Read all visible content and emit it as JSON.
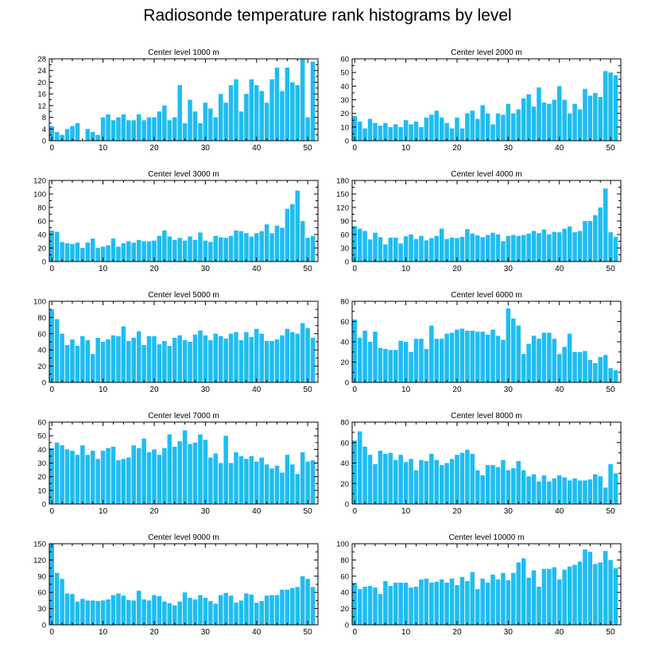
{
  "title": "Radiosonde temperature rank histograms by level",
  "bar_color": "#1ebdf2",
  "chart_data": [
    {
      "type": "bar",
      "title": "Center level 1000 m",
      "xlabel": "",
      "ylabel": "",
      "xlim": [
        -0.5,
        52
      ],
      "xticks": [
        0,
        10,
        20,
        30,
        40,
        50
      ],
      "ylim": [
        0,
        28
      ],
      "yticks": [
        0,
        4,
        8,
        12,
        16,
        20,
        24,
        28
      ],
      "x": [
        0,
        1,
        2,
        3,
        4,
        5,
        6,
        7,
        8,
        9,
        10,
        11,
        12,
        13,
        14,
        15,
        16,
        17,
        18,
        19,
        20,
        21,
        22,
        23,
        24,
        25,
        26,
        27,
        28,
        29,
        30,
        31,
        32,
        33,
        34,
        35,
        36,
        37,
        38,
        39,
        40,
        41,
        42,
        43,
        44,
        45,
        46,
        47,
        48,
        49,
        50,
        51
      ],
      "values": [
        5,
        3,
        2,
        4,
        5,
        6,
        0,
        4,
        3,
        2,
        8,
        9,
        7,
        8,
        9,
        7,
        7,
        9,
        7,
        8,
        8,
        10,
        12,
        7,
        8,
        19,
        6,
        14,
        10,
        6,
        13,
        11,
        8,
        16,
        13,
        19,
        21,
        10,
        16,
        21,
        19,
        17,
        13,
        21,
        25,
        17,
        25,
        20,
        19,
        28,
        8,
        27
      ]
    },
    {
      "type": "bar",
      "title": "Center level 2000 m",
      "xlabel": "",
      "ylabel": "",
      "xlim": [
        -0.5,
        52
      ],
      "xticks": [
        0,
        10,
        20,
        30,
        40,
        50
      ],
      "ylim": [
        0,
        60
      ],
      "yticks": [
        0,
        10,
        20,
        30,
        40,
        50,
        60
      ],
      "x": [
        0,
        1,
        2,
        3,
        4,
        5,
        6,
        7,
        8,
        9,
        10,
        11,
        12,
        13,
        14,
        15,
        16,
        17,
        18,
        19,
        20,
        21,
        22,
        23,
        24,
        25,
        26,
        27,
        28,
        29,
        30,
        31,
        32,
        33,
        34,
        35,
        36,
        37,
        38,
        39,
        40,
        41,
        42,
        43,
        44,
        45,
        46,
        47,
        48,
        49,
        50,
        51
      ],
      "values": [
        18,
        14,
        9,
        16,
        13,
        11,
        13,
        10,
        12,
        10,
        15,
        12,
        14,
        10,
        17,
        19,
        22,
        17,
        13,
        9,
        17,
        9,
        20,
        22,
        16,
        26,
        20,
        12,
        20,
        19,
        27,
        20,
        23,
        31,
        34,
        25,
        39,
        28,
        27,
        30,
        40,
        30,
        20,
        27,
        23,
        38,
        33,
        35,
        32,
        51,
        50,
        48
      ]
    },
    {
      "type": "bar",
      "title": "Center level 3000 m",
      "xlabel": "",
      "ylabel": "",
      "xlim": [
        -0.5,
        52
      ],
      "xticks": [
        0,
        10,
        20,
        30,
        40,
        50
      ],
      "ylim": [
        0,
        120
      ],
      "yticks": [
        0,
        20,
        40,
        60,
        80,
        100,
        120
      ],
      "x": [
        0,
        1,
        2,
        3,
        4,
        5,
        6,
        7,
        8,
        9,
        10,
        11,
        12,
        13,
        14,
        15,
        16,
        17,
        18,
        19,
        20,
        21,
        22,
        23,
        24,
        25,
        26,
        27,
        28,
        29,
        30,
        31,
        32,
        33,
        34,
        35,
        36,
        37,
        38,
        39,
        40,
        41,
        42,
        43,
        44,
        45,
        46,
        47,
        48,
        49,
        50,
        51
      ],
      "values": [
        46,
        44,
        29,
        27,
        26,
        28,
        20,
        28,
        34,
        20,
        22,
        24,
        34,
        22,
        27,
        30,
        28,
        32,
        30,
        30,
        31,
        38,
        46,
        37,
        32,
        35,
        31,
        37,
        32,
        43,
        31,
        29,
        38,
        36,
        35,
        38,
        46,
        45,
        42,
        37,
        42,
        45,
        55,
        42,
        53,
        50,
        78,
        85,
        105,
        60,
        35,
        38
      ]
    },
    {
      "type": "bar",
      "title": "Center level 4000 m",
      "xlabel": "",
      "ylabel": "",
      "xlim": [
        -0.5,
        52
      ],
      "xticks": [
        0,
        10,
        20,
        30,
        40,
        50
      ],
      "ylim": [
        0,
        180
      ],
      "yticks": [
        0,
        30,
        60,
        90,
        120,
        150,
        180
      ],
      "x": [
        0,
        1,
        2,
        3,
        4,
        5,
        6,
        7,
        8,
        9,
        10,
        11,
        12,
        13,
        14,
        15,
        16,
        17,
        18,
        19,
        20,
        21,
        22,
        23,
        24,
        25,
        26,
        27,
        28,
        29,
        30,
        31,
        32,
        33,
        34,
        35,
        36,
        37,
        38,
        39,
        40,
        41,
        42,
        43,
        44,
        45,
        46,
        47,
        48,
        49,
        50,
        51
      ],
      "values": [
        79,
        73,
        68,
        49,
        64,
        54,
        38,
        53,
        53,
        40,
        56,
        60,
        50,
        57,
        47,
        52,
        57,
        73,
        50,
        53,
        52,
        55,
        72,
        62,
        58,
        54,
        59,
        64,
        60,
        45,
        57,
        59,
        57,
        59,
        62,
        68,
        63,
        71,
        60,
        66,
        65,
        73,
        78,
        65,
        68,
        90,
        90,
        103,
        120,
        162,
        65,
        55
      ]
    },
    {
      "type": "bar",
      "title": "Center level 5000 m",
      "xlabel": "",
      "ylabel": "",
      "xlim": [
        -0.5,
        52
      ],
      "xticks": [
        0,
        10,
        20,
        30,
        40,
        50
      ],
      "ylim": [
        0,
        100
      ],
      "yticks": [
        0,
        20,
        40,
        60,
        80,
        100
      ],
      "x": [
        0,
        1,
        2,
        3,
        4,
        5,
        6,
        7,
        8,
        9,
        10,
        11,
        12,
        13,
        14,
        15,
        16,
        17,
        18,
        19,
        20,
        21,
        22,
        23,
        24,
        25,
        26,
        27,
        28,
        29,
        30,
        31,
        32,
        33,
        34,
        35,
        36,
        37,
        38,
        39,
        40,
        41,
        42,
        43,
        44,
        45,
        46,
        47,
        48,
        49,
        50,
        51
      ],
      "values": [
        90,
        78,
        60,
        46,
        53,
        45,
        57,
        52,
        35,
        55,
        50,
        53,
        58,
        57,
        69,
        51,
        55,
        63,
        46,
        57,
        57,
        47,
        51,
        45,
        55,
        58,
        52,
        50,
        59,
        64,
        58,
        52,
        60,
        57,
        54,
        60,
        62,
        52,
        62,
        56,
        66,
        60,
        51,
        51,
        53,
        58,
        66,
        62,
        60,
        73,
        67,
        55
      ]
    },
    {
      "type": "bar",
      "title": "Center level 6000 m",
      "xlabel": "",
      "ylabel": "",
      "xlim": [
        -0.5,
        52
      ],
      "xticks": [
        0,
        10,
        20,
        30,
        40,
        50
      ],
      "ylim": [
        0,
        80
      ],
      "yticks": [
        0,
        20,
        40,
        60,
        80
      ],
      "x": [
        0,
        1,
        2,
        3,
        4,
        5,
        6,
        7,
        8,
        9,
        10,
        11,
        12,
        13,
        14,
        15,
        16,
        17,
        18,
        19,
        20,
        21,
        22,
        23,
        24,
        25,
        26,
        27,
        28,
        29,
        30,
        31,
        32,
        33,
        34,
        35,
        36,
        37,
        38,
        39,
        40,
        41,
        42,
        43,
        44,
        45,
        46,
        47,
        48,
        49,
        50,
        51
      ],
      "values": [
        62,
        44,
        51,
        40,
        50,
        34,
        33,
        32,
        32,
        41,
        40,
        30,
        43,
        43,
        33,
        56,
        43,
        43,
        48,
        49,
        52,
        53,
        51,
        51,
        50,
        50,
        47,
        52,
        46,
        42,
        73,
        63,
        56,
        28,
        38,
        46,
        43,
        49,
        49,
        43,
        28,
        35,
        48,
        30,
        30,
        31,
        22,
        19,
        25,
        27,
        14,
        12
      ]
    },
    {
      "type": "bar",
      "title": "Center level 7000 m",
      "xlabel": "",
      "ylabel": "",
      "xlim": [
        -0.5,
        52
      ],
      "xticks": [
        0,
        10,
        20,
        30,
        40,
        50
      ],
      "ylim": [
        0,
        60
      ],
      "yticks": [
        0,
        10,
        20,
        30,
        40,
        50,
        60
      ],
      "x": [
        0,
        1,
        2,
        3,
        4,
        5,
        6,
        7,
        8,
        9,
        10,
        11,
        12,
        13,
        14,
        15,
        16,
        17,
        18,
        19,
        20,
        21,
        22,
        23,
        24,
        25,
        26,
        27,
        28,
        29,
        30,
        31,
        32,
        33,
        34,
        35,
        36,
        37,
        38,
        39,
        40,
        41,
        42,
        43,
        44,
        45,
        46,
        47,
        48,
        49,
        50,
        51
      ],
      "values": [
        41,
        45,
        43,
        40,
        39,
        36,
        43,
        36,
        39,
        33,
        39,
        41,
        42,
        32,
        33,
        34,
        43,
        41,
        48,
        38,
        40,
        36,
        41,
        51,
        42,
        46,
        54,
        44,
        45,
        51,
        47,
        34,
        37,
        30,
        50,
        30,
        38,
        35,
        33,
        35,
        31,
        34,
        29,
        26,
        28,
        23,
        36,
        29,
        22,
        38,
        31,
        32
      ]
    },
    {
      "type": "bar",
      "title": "Center level 8000 m",
      "xlabel": "",
      "ylabel": "",
      "xlim": [
        -0.5,
        52
      ],
      "xticks": [
        0,
        10,
        20,
        30,
        40,
        50
      ],
      "ylim": [
        0,
        80
      ],
      "yticks": [
        0,
        20,
        40,
        60,
        80
      ],
      "x": [
        0,
        1,
        2,
        3,
        4,
        5,
        6,
        7,
        8,
        9,
        10,
        11,
        12,
        13,
        14,
        15,
        16,
        17,
        18,
        19,
        20,
        21,
        22,
        23,
        24,
        25,
        26,
        27,
        28,
        29,
        30,
        31,
        32,
        33,
        34,
        35,
        36,
        37,
        38,
        39,
        40,
        41,
        42,
        43,
        44,
        45,
        46,
        47,
        48,
        49,
        50,
        51
      ],
      "values": [
        62,
        71,
        56,
        48,
        39,
        52,
        49,
        50,
        43,
        48,
        41,
        44,
        33,
        43,
        42,
        49,
        43,
        38,
        40,
        44,
        48,
        50,
        53,
        49,
        33,
        28,
        38,
        38,
        36,
        43,
        33,
        35,
        42,
        33,
        27,
        29,
        22,
        28,
        22,
        25,
        28,
        26,
        23,
        25,
        23,
        23,
        24,
        29,
        27,
        16,
        39,
        30
      ]
    },
    {
      "type": "bar",
      "title": "Center level 9000 m",
      "xlabel": "",
      "ylabel": "",
      "xlim": [
        -0.5,
        52
      ],
      "xticks": [
        0,
        10,
        20,
        30,
        40,
        50
      ],
      "ylim": [
        0,
        150
      ],
      "yticks": [
        0,
        30,
        60,
        90,
        120,
        150
      ],
      "x": [
        0,
        1,
        2,
        3,
        4,
        5,
        6,
        7,
        8,
        9,
        10,
        11,
        12,
        13,
        14,
        15,
        16,
        17,
        18,
        19,
        20,
        21,
        22,
        23,
        24,
        25,
        26,
        27,
        28,
        29,
        30,
        31,
        32,
        33,
        34,
        35,
        36,
        37,
        38,
        39,
        40,
        41,
        42,
        43,
        44,
        45,
        46,
        47,
        48,
        49,
        50,
        51
      ],
      "values": [
        150,
        96,
        85,
        58,
        57,
        43,
        48,
        45,
        45,
        44,
        45,
        47,
        55,
        58,
        54,
        46,
        45,
        63,
        47,
        45,
        55,
        53,
        43,
        40,
        36,
        43,
        60,
        50,
        47,
        55,
        50,
        44,
        39,
        55,
        59,
        54,
        41,
        45,
        58,
        56,
        41,
        44,
        54,
        55,
        55,
        65,
        65,
        68,
        70,
        90,
        85,
        70
      ]
    },
    {
      "type": "bar",
      "title": "Center level 10000 m",
      "xlabel": "",
      "ylabel": "",
      "xlim": [
        -0.5,
        52
      ],
      "xticks": [
        0,
        10,
        20,
        30,
        40,
        50
      ],
      "ylim": [
        0,
        100
      ],
      "yticks": [
        0,
        20,
        40,
        60,
        80,
        100
      ],
      "x": [
        0,
        1,
        2,
        3,
        4,
        5,
        6,
        7,
        8,
        9,
        10,
        11,
        12,
        13,
        14,
        15,
        16,
        17,
        18,
        19,
        20,
        21,
        22,
        23,
        24,
        25,
        26,
        27,
        28,
        29,
        30,
        31,
        32,
        33,
        34,
        35,
        36,
        37,
        38,
        39,
        40,
        41,
        42,
        43,
        44,
        45,
        46,
        47,
        48,
        49,
        50,
        51
      ],
      "values": [
        52,
        44,
        47,
        48,
        46,
        38,
        54,
        48,
        52,
        52,
        52,
        46,
        47,
        56,
        57,
        52,
        53,
        56,
        52,
        57,
        49,
        59,
        54,
        65,
        44,
        57,
        52,
        62,
        56,
        64,
        55,
        64,
        77,
        82,
        58,
        67,
        47,
        69,
        69,
        71,
        56,
        68,
        72,
        74,
        78,
        93,
        90,
        75,
        77,
        91,
        80,
        70
      ]
    }
  ]
}
